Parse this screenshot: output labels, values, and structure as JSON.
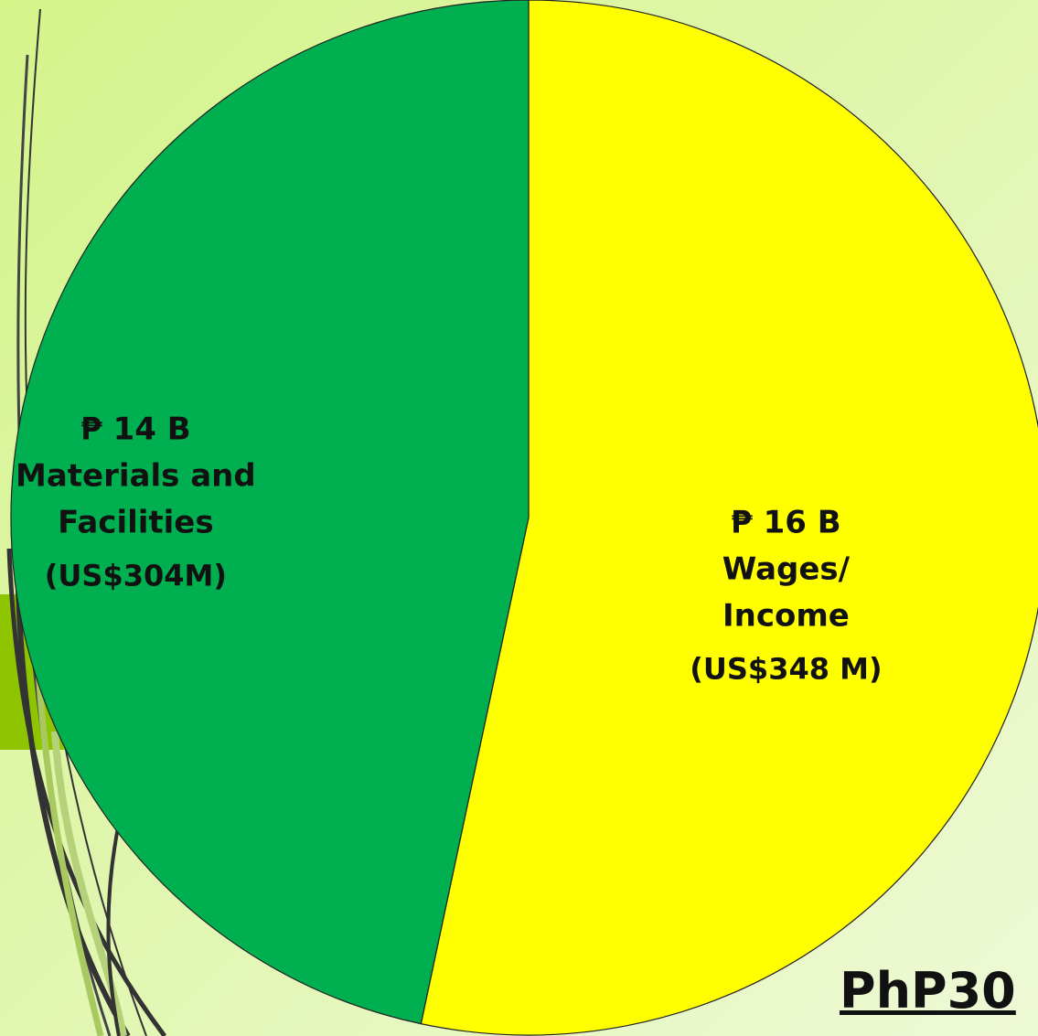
{
  "chart_data": {
    "type": "pie",
    "categories": [
      "Wages/ Income",
      "Materials and Facilities"
    ],
    "values": [
      16,
      14
    ],
    "value_labels": [
      "₱ 16 B",
      "₱ 14 B"
    ],
    "usd_labels": [
      "(US$348 M)",
      "(US$304M)"
    ],
    "colors": [
      "#ffff00",
      "#00b050"
    ],
    "total_label": "PhP30"
  }
}
